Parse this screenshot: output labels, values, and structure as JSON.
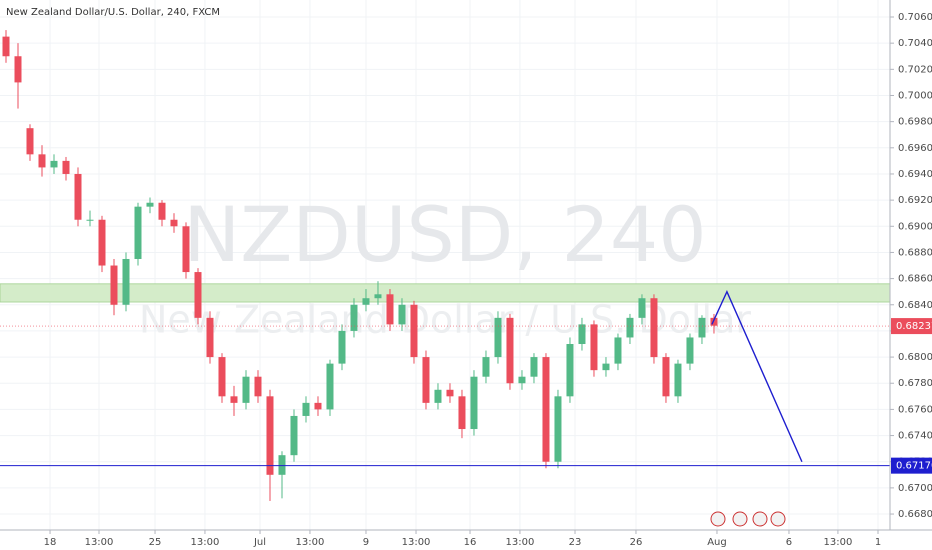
{
  "chart_data": {
    "type": "candlestick",
    "title": "New Zealand Dollar/U.S. Dollar, 240, FXCM",
    "watermark_symbol": "NZDUSD, 240",
    "watermark_name": "New Zealand Dollar / U.S. Dollar",
    "up_color": "#53b987",
    "down_color": "#eb4d5c",
    "open": [
      0.7045,
      0.703,
      0.6975,
      0.6955,
      0.6945,
      0.695,
      0.694,
      0.6905,
      0.6905,
      0.687,
      0.684,
      0.6875,
      0.6915,
      0.6918,
      0.6905,
      0.69,
      0.6865,
      0.683,
      0.68,
      0.677,
      0.6765,
      0.6785,
      0.677,
      0.671,
      0.6725,
      0.6755,
      0.6765,
      0.676,
      0.6795,
      0.682,
      0.684,
      0.6845,
      0.6848,
      0.6825,
      0.684,
      0.68,
      0.6765,
      0.6775,
      0.677,
      0.6745,
      0.6785,
      0.68,
      0.683,
      0.678,
      0.6785,
      0.68,
      0.672,
      0.677,
      0.681,
      0.6825,
      0.679,
      0.6795,
      0.6815,
      0.683,
      0.6845,
      0.68,
      0.677,
      0.6795,
      0.6815,
      0.683
    ],
    "high": [
      0.705,
      0.704,
      0.6978,
      0.6962,
      0.6955,
      0.6953,
      0.6945,
      0.6912,
      0.6908,
      0.6875,
      0.688,
      0.6918,
      0.6922,
      0.692,
      0.691,
      0.6903,
      0.6868,
      0.6835,
      0.6803,
      0.6778,
      0.679,
      0.679,
      0.6775,
      0.6728,
      0.676,
      0.677,
      0.677,
      0.6798,
      0.6825,
      0.6845,
      0.6852,
      0.6858,
      0.6852,
      0.6845,
      0.6843,
      0.6805,
      0.678,
      0.678,
      0.6775,
      0.679,
      0.6805,
      0.6835,
      0.6833,
      0.679,
      0.6803,
      0.6803,
      0.6775,
      0.6815,
      0.683,
      0.6828,
      0.68,
      0.6818,
      0.6833,
      0.6848,
      0.6848,
      0.6803,
      0.6798,
      0.6818,
      0.6832,
      0.6833
    ],
    "low": [
      0.7025,
      0.699,
      0.695,
      0.6938,
      0.694,
      0.6935,
      0.69,
      0.69,
      0.6865,
      0.6832,
      0.6835,
      0.687,
      0.691,
      0.69,
      0.6895,
      0.686,
      0.6825,
      0.6795,
      0.6765,
      0.6755,
      0.676,
      0.6765,
      0.669,
      0.6692,
      0.672,
      0.675,
      0.6755,
      0.6755,
      0.679,
      0.6815,
      0.6835,
      0.684,
      0.682,
      0.682,
      0.6795,
      0.676,
      0.676,
      0.6765,
      0.6738,
      0.674,
      0.678,
      0.6795,
      0.6775,
      0.6775,
      0.678,
      0.6715,
      0.6715,
      0.6765,
      0.6805,
      0.6785,
      0.6785,
      0.679,
      0.681,
      0.6825,
      0.6795,
      0.6765,
      0.6765,
      0.679,
      0.681,
      0.6818
    ],
    "close": [
      0.703,
      0.701,
      0.6955,
      0.6945,
      0.695,
      0.694,
      0.6905,
      0.6905,
      0.687,
      0.684,
      0.6875,
      0.6915,
      0.6918,
      0.6905,
      0.69,
      0.6865,
      0.683,
      0.68,
      0.677,
      0.6765,
      0.6785,
      0.677,
      0.671,
      0.6725,
      0.6755,
      0.6765,
      0.676,
      0.6795,
      0.682,
      0.684,
      0.6845,
      0.6848,
      0.6825,
      0.684,
      0.68,
      0.6765,
      0.6775,
      0.677,
      0.6745,
      0.6785,
      0.68,
      0.683,
      0.678,
      0.6785,
      0.68,
      0.672,
      0.677,
      0.681,
      0.6825,
      0.679,
      0.6795,
      0.6815,
      0.683,
      0.6845,
      0.68,
      0.677,
      0.6795,
      0.6815,
      0.683,
      0.6824
    ],
    "xlim": [
      -0.5,
      73.67
    ],
    "xticks": [
      {
        "value": 3.67,
        "label": "18"
      },
      {
        "value": 7.75,
        "label": "13:00"
      },
      {
        "value": 12.42,
        "label": "25"
      },
      {
        "value": 16.58,
        "label": "13:00"
      },
      {
        "value": 21.17,
        "label": "Jul"
      },
      {
        "value": 25.33,
        "label": "13:00"
      },
      {
        "value": 30,
        "label": "9"
      },
      {
        "value": 34.17,
        "label": "13:00"
      },
      {
        "value": 38.67,
        "label": "16"
      },
      {
        "value": 42.83,
        "label": "13:00"
      },
      {
        "value": 47.42,
        "label": "23"
      },
      {
        "value": 52.5,
        "label": "26"
      },
      {
        "value": 59.25,
        "label": "Aug"
      },
      {
        "value": 65.25,
        "label": "6"
      },
      {
        "value": 69.33,
        "label": "13:00"
      },
      {
        "value": 72.67,
        "label": "1"
      }
    ],
    "ylim": [
      0.66678,
      0.7073
    ],
    "yticks": [
      {
        "value": 0.706,
        "label": "0.70600"
      },
      {
        "value": 0.704,
        "label": "0.70400"
      },
      {
        "value": 0.702,
        "label": "0.70200"
      },
      {
        "value": 0.7,
        "label": "0.70000"
      },
      {
        "value": 0.698,
        "label": "0.69800"
      },
      {
        "value": 0.696,
        "label": "0.69600"
      },
      {
        "value": 0.694,
        "label": "0.69400"
      },
      {
        "value": 0.692,
        "label": "0.69200"
      },
      {
        "value": 0.69,
        "label": "0.69000"
      },
      {
        "value": 0.688,
        "label": "0.68800"
      },
      {
        "value": 0.686,
        "label": "0.68600"
      },
      {
        "value": 0.684,
        "label": "0.68400"
      },
      {
        "value": 0.682,
        "label": "0.68200"
      },
      {
        "value": 0.68,
        "label": "0.68000"
      },
      {
        "value": 0.678,
        "label": "0.67800"
      },
      {
        "value": 0.676,
        "label": "0.67600"
      },
      {
        "value": 0.674,
        "label": "0.67400"
      },
      {
        "value": 0.672,
        "label": "0.67200"
      },
      {
        "value": 0.67,
        "label": "0.67000"
      },
      {
        "value": 0.668,
        "label": "0.66800"
      }
    ],
    "grid": true,
    "zone": [
      0.68421,
      0.6856
    ],
    "zone_color": "#d4ecc9",
    "support": {
      "value": 0.6717,
      "label": "0.67170"
    },
    "support_color": "#1e1ecf",
    "current_price": {
      "value": 0.68237,
      "label": "0.68237"
    },
    "current_color": "#eb4d5c",
    "projection": {
      "x": [
        58.83,
        60.08,
        66.33
      ],
      "y": [
        0.6825,
        0.685,
        0.672
      ]
    },
    "projection_color": "#1e1ecf"
  }
}
